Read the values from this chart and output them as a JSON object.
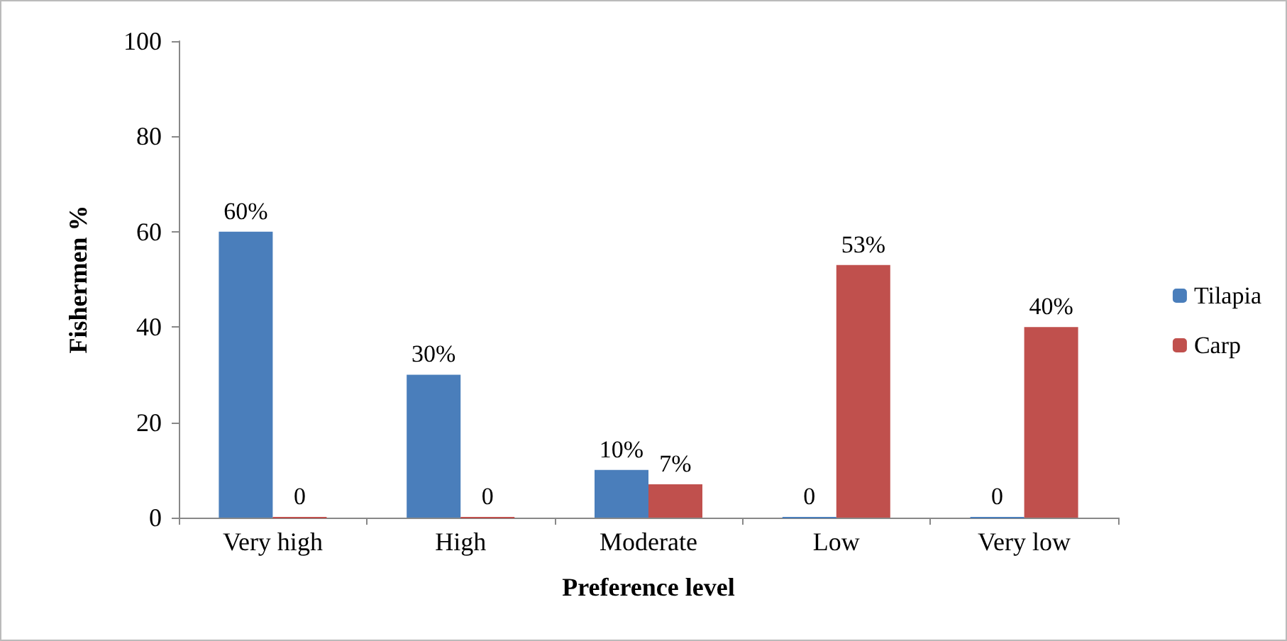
{
  "chart_data": {
    "type": "bar",
    "xlabel": "Preference level",
    "ylabel": "Fishermen %",
    "categories": [
      "Very high",
      "High",
      "Moderate",
      "Low",
      "Very low"
    ],
    "series": [
      {
        "name": "Tilapia",
        "color": "#4a7ebb",
        "values": [
          60,
          30,
          10,
          0,
          0
        ],
        "value_labels": [
          "60%",
          "30%",
          "10%",
          "0",
          "0"
        ]
      },
      {
        "name": "Carp",
        "color": "#c0504d",
        "values": [
          0,
          0,
          7,
          53,
          40
        ],
        "value_labels": [
          "0",
          "0",
          "7%",
          "53%",
          "40%"
        ]
      }
    ],
    "ylim": [
      0,
      100
    ],
    "yticks": [
      0,
      20,
      40,
      60,
      80,
      100
    ],
    "grid": false,
    "legend": "right"
  }
}
